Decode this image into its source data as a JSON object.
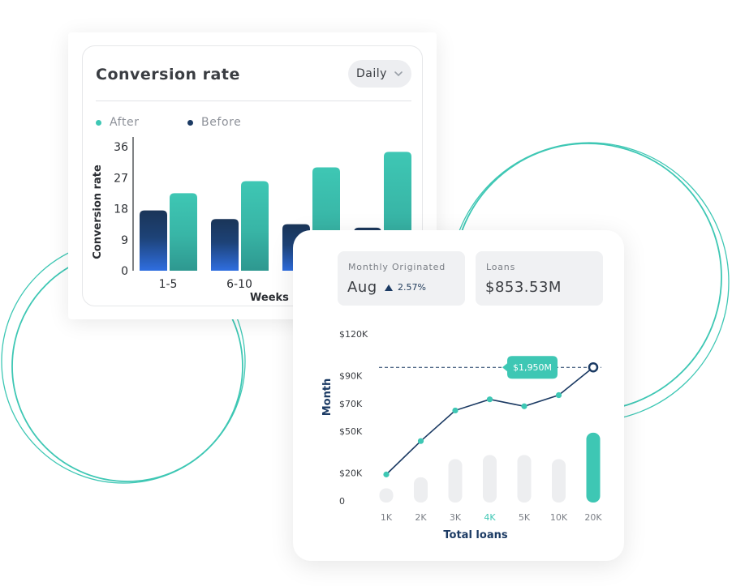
{
  "colors": {
    "teal": "#3ec7b4",
    "teal_dark": "#2e9c91",
    "navy": "#1b3a63",
    "blue": "#2f6ee0",
    "gray_bar": "#edeef0"
  },
  "conversion_card": {
    "title": "Conversion rate",
    "period_select": "Daily",
    "legend": {
      "after": "After",
      "before": "Before"
    }
  },
  "loans_card": {
    "monthly": {
      "label": "Monthly Originated",
      "value": "Aug",
      "change": "2.57%"
    },
    "loans": {
      "label": "Loans",
      "value": "$853.53M"
    }
  },
  "chart_data": [
    {
      "type": "bar",
      "title": "Conversion rate",
      "xlabel": "Weeks",
      "ylabel": "Conversion rate",
      "ylim": [
        0,
        36
      ],
      "yticks": [
        "0",
        "9",
        "18",
        "27",
        "36"
      ],
      "categories": [
        "1-5",
        "6-10",
        "",
        ""
      ],
      "series": [
        {
          "name": "Before",
          "values": [
            17.5,
            15,
            13.5,
            12.5
          ]
        },
        {
          "name": "After",
          "values": [
            22.5,
            26,
            30,
            34.5
          ]
        }
      ],
      "legend": "top-left",
      "grid": false
    },
    {
      "type": "line",
      "xlabel": "Total loans",
      "ylabel": "Month",
      "ylim": [
        0,
        120000
      ],
      "yticks": [
        "0",
        "$20K",
        "$50K",
        "$70K",
        "$90K",
        "$120K"
      ],
      "categories": [
        "1K",
        "2K",
        "3K",
        "4K",
        "5K",
        "10K",
        "20K"
      ],
      "highlighted_category": "4K",
      "line_values": [
        19000,
        43000,
        65000,
        73000,
        68000,
        76000,
        96000
      ],
      "bar_values": [
        9000,
        17000,
        30000,
        33000,
        33000,
        30000,
        49000
      ],
      "annotation": "$1,950M",
      "reference_line": 96000,
      "grid": false
    }
  ]
}
